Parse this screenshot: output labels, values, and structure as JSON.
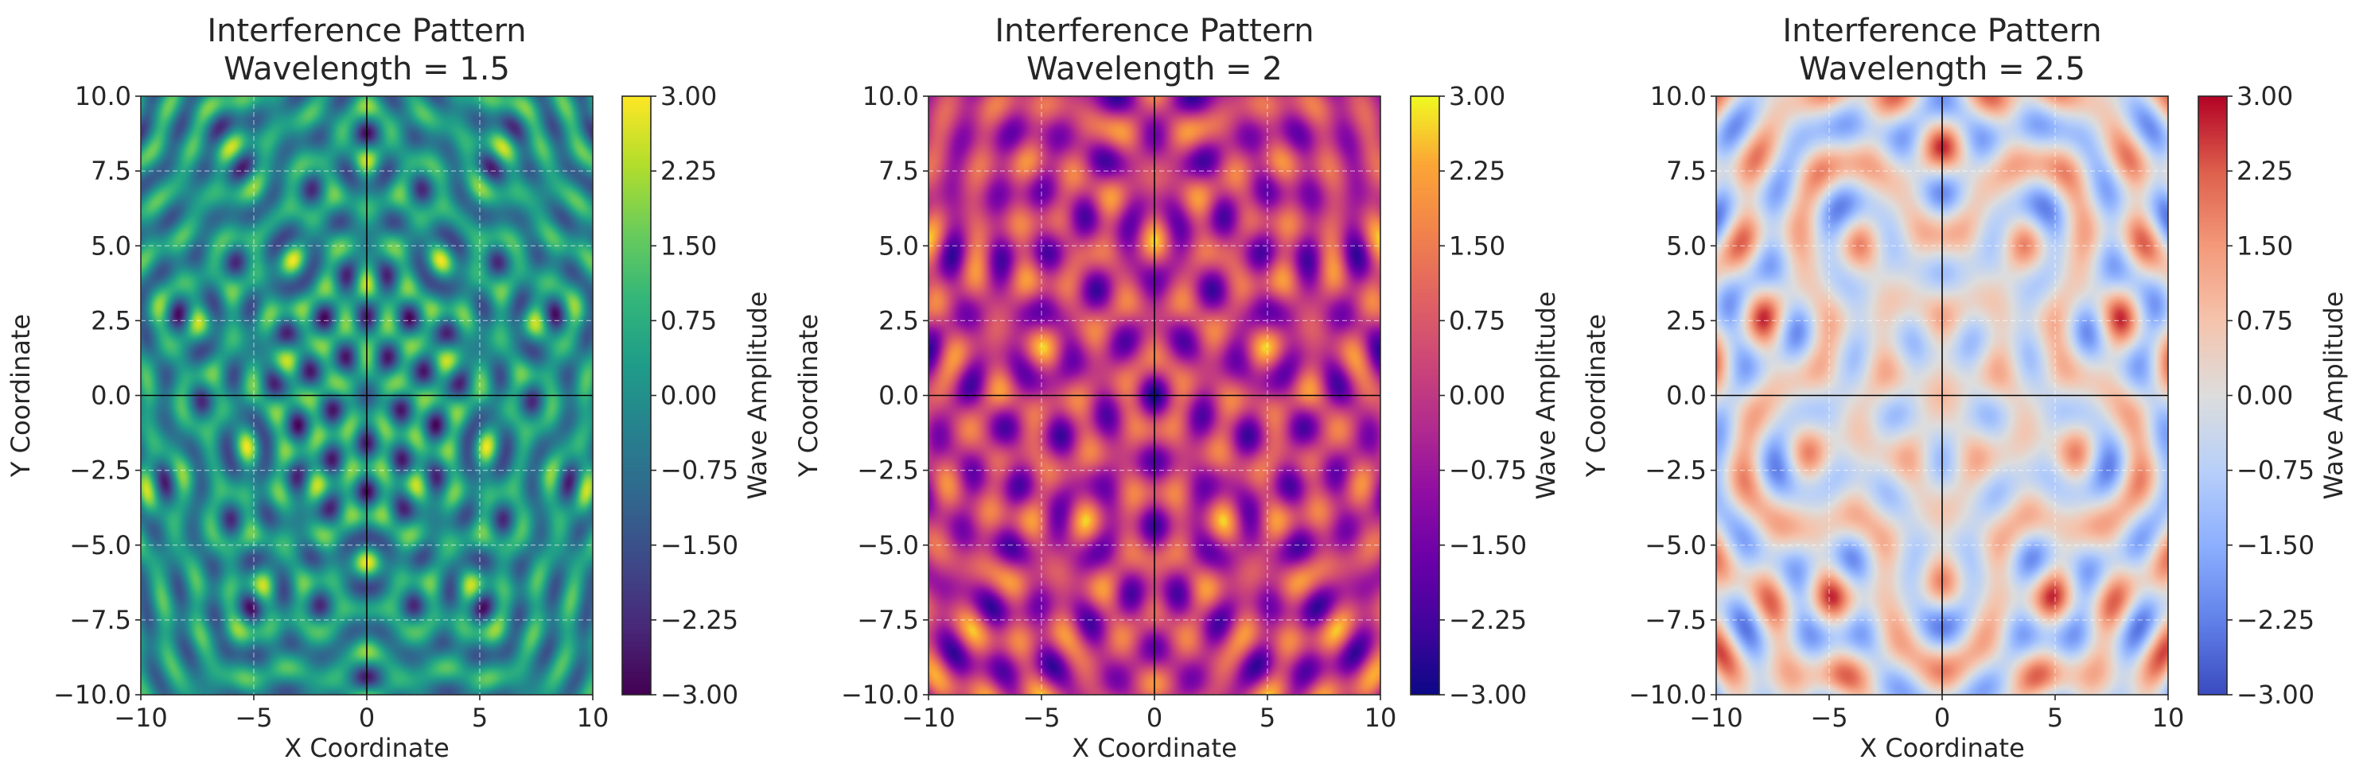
{
  "chart_data": [
    {
      "type": "heatmap",
      "title": "Interference Pattern\nWavelength = 1.5",
      "wavelength": 1.5,
      "colormap": "viridis",
      "xlabel": "X Coordinate",
      "ylabel": "Y Coordinate",
      "colorbar_label": "Wave Amplitude",
      "xlim": [
        -10,
        10
      ],
      "ylim": [
        -10,
        10
      ],
      "clim": [
        -3.0,
        3.0
      ],
      "xticks": [
        -10,
        -5,
        0,
        5,
        10
      ],
      "xticklabels": [
        "−10",
        "−5",
        "0",
        "5",
        "10"
      ],
      "yticks": [
        -10,
        -7.5,
        -5,
        -2.5,
        0,
        2.5,
        5,
        7.5,
        10
      ],
      "yticklabels": [
        "−10.0",
        "−7.5",
        "−5.0",
        "−2.5",
        "0.0",
        "2.5",
        "5.0",
        "7.5",
        "10.0"
      ],
      "cbticks": [
        -3,
        -2.25,
        -1.5,
        -0.75,
        0,
        0.75,
        1.5,
        2.25,
        3
      ],
      "cbticklabels": [
        "−3.00",
        "−2.25",
        "−1.50",
        "−0.75",
        "0.00",
        "0.75",
        "1.50",
        "2.25",
        "3.00"
      ],
      "grid": true,
      "axis_lines": [
        0,
        0
      ]
    },
    {
      "type": "heatmap",
      "title": "Interference Pattern\nWavelength = 2",
      "wavelength": 2,
      "colormap": "plasma",
      "xlabel": "X Coordinate",
      "ylabel": "Y Coordinate",
      "colorbar_label": "Wave Amplitude",
      "xlim": [
        -10,
        10
      ],
      "ylim": [
        -10,
        10
      ],
      "clim": [
        -3.0,
        3.0
      ],
      "xticks": [
        -10,
        -5,
        0,
        5,
        10
      ],
      "xticklabels": [
        "−10",
        "−5",
        "0",
        "5",
        "10"
      ],
      "yticks": [
        -10,
        -7.5,
        -5,
        -2.5,
        0,
        2.5,
        5,
        7.5,
        10
      ],
      "yticklabels": [
        "−10.0",
        "−7.5",
        "−5.0",
        "−2.5",
        "0.0",
        "2.5",
        "5.0",
        "7.5",
        "10.0"
      ],
      "cbticks": [
        -3,
        -2.25,
        -1.5,
        -0.75,
        0,
        0.75,
        1.5,
        2.25,
        3
      ],
      "cbticklabels": [
        "−3.00",
        "−2.25",
        "−1.50",
        "−0.75",
        "0.00",
        "0.75",
        "1.50",
        "2.25",
        "3.00"
      ],
      "grid": true,
      "axis_lines": [
        0,
        0
      ]
    },
    {
      "type": "heatmap",
      "title": "Interference Pattern\nWavelength = 2.5",
      "wavelength": 2.5,
      "colormap": "coolwarm",
      "xlabel": "X Coordinate",
      "ylabel": "Y Coordinate",
      "colorbar_label": "Wave Amplitude",
      "xlim": [
        -10,
        10
      ],
      "ylim": [
        -10,
        10
      ],
      "clim": [
        -3.0,
        3.0
      ],
      "xticks": [
        -10,
        -5,
        0,
        5,
        10
      ],
      "xticklabels": [
        "−10",
        "−5",
        "0",
        "5",
        "10"
      ],
      "yticks": [
        -10,
        -7.5,
        -5,
        -2.5,
        0,
        2.5,
        5,
        7.5,
        10
      ],
      "yticklabels": [
        "−10.0",
        "−7.5",
        "−5.0",
        "−2.5",
        "0.0",
        "2.5",
        "5.0",
        "7.5",
        "10.0"
      ],
      "cbticks": [
        -3,
        -2.25,
        -1.5,
        -0.75,
        0,
        0.75,
        1.5,
        2.25,
        3
      ],
      "cbticklabels": [
        "−3.00",
        "−2.25",
        "−1.50",
        "−0.75",
        "0.00",
        "0.75",
        "1.50",
        "2.25",
        "3.00"
      ],
      "grid": true,
      "axis_lines": [
        0,
        0
      ]
    }
  ]
}
